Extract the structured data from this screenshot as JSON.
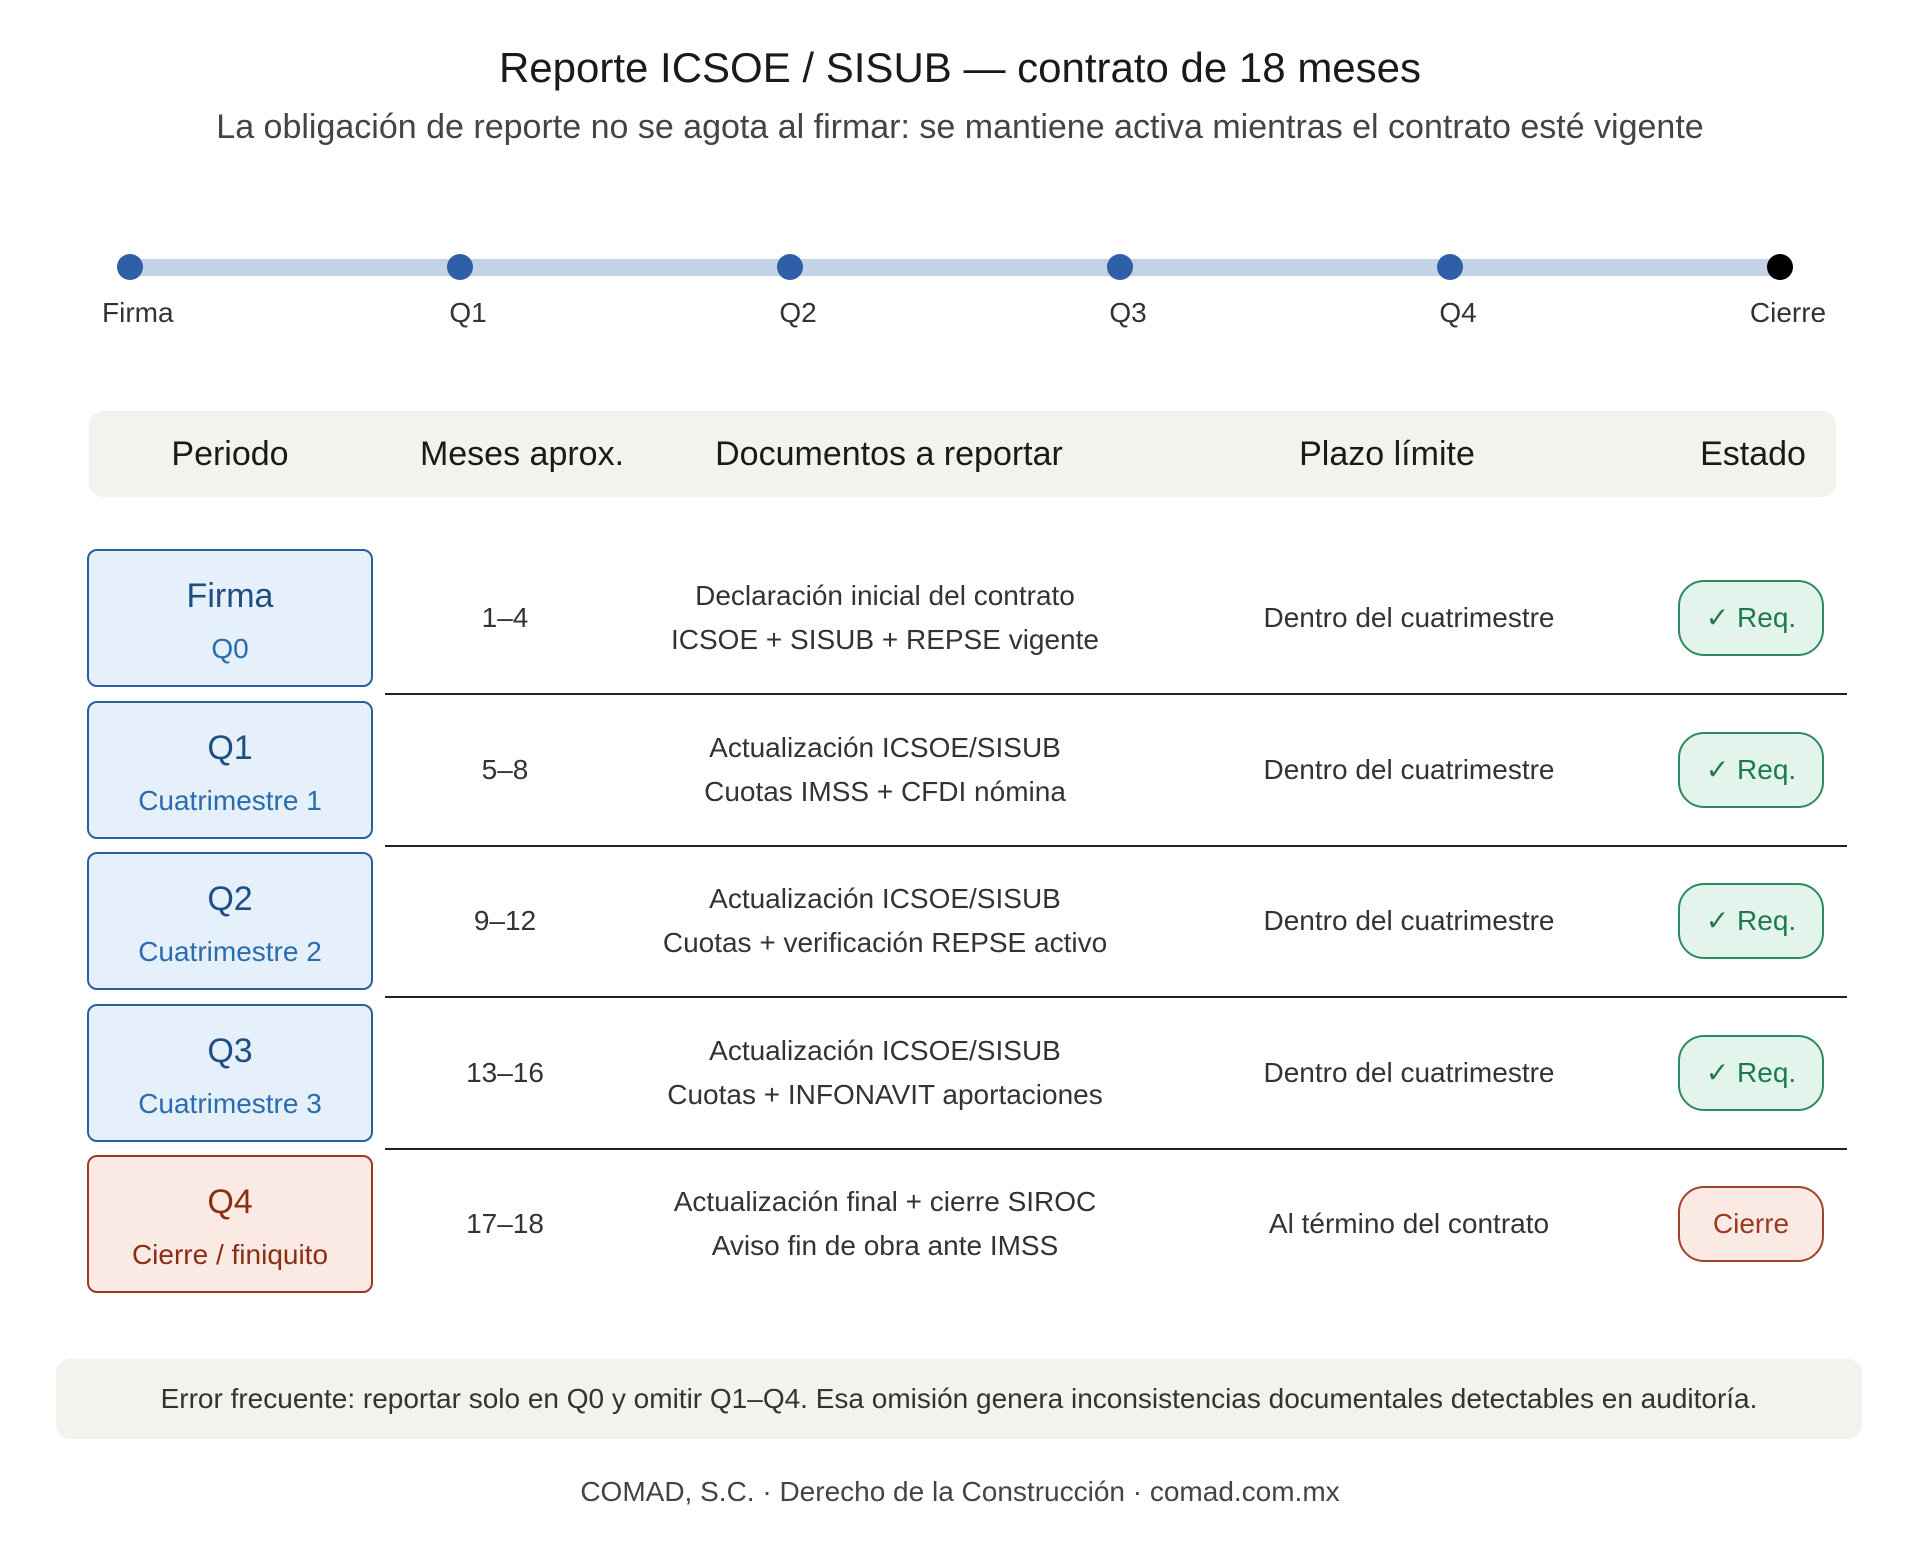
{
  "header": {
    "title": "Reporte ICSOE / SISUB — contrato de 18 meses",
    "subtitle": "La obligación de reporte no se agota al firmar: se mantiene activa mientras el contrato esté vigente"
  },
  "timeline": {
    "labels": [
      "Firma",
      "Q1",
      "Q2",
      "Q3",
      "Q4",
      "Cierre"
    ]
  },
  "table": {
    "columns": [
      "Periodo",
      "Meses aprox.",
      "Documentos a reportar",
      "Plazo límite",
      "Estado"
    ],
    "rows": [
      {
        "period": "Firma",
        "sub": "Q0",
        "months": "1–4",
        "docs": [
          "Declaración inicial del contrato",
          "ICSOE + SISUB + REPSE vigente"
        ],
        "deadline": "Dentro del cuatrimestre",
        "status": "✓ Req."
      },
      {
        "period": "Q1",
        "sub": "Cuatrimestre 1",
        "months": "5–8",
        "docs": [
          "Actualización ICSOE/SISUB",
          "Cuotas IMSS + CFDI nómina"
        ],
        "deadline": "Dentro del cuatrimestre",
        "status": "✓ Req."
      },
      {
        "period": "Q2",
        "sub": "Cuatrimestre 2",
        "months": "9–12",
        "docs": [
          "Actualización ICSOE/SISUB",
          "Cuotas + verificación REPSE activo"
        ],
        "deadline": "Dentro del cuatrimestre",
        "status": "✓ Req."
      },
      {
        "period": "Q3",
        "sub": "Cuatrimestre 3",
        "months": "13–16",
        "docs": [
          "Actualización ICSOE/SISUB",
          "Cuotas + INFONAVIT aportaciones"
        ],
        "deadline": "Dentro del cuatrimestre",
        "status": "✓ Req."
      },
      {
        "period": "Q4",
        "sub": "Cierre / finiquito",
        "months": "17–18",
        "docs": [
          "Actualización final + cierre SIROC",
          "Aviso fin de obra ante IMSS"
        ],
        "deadline": "Al término del contrato",
        "status": "Cierre"
      }
    ]
  },
  "note": "Error frecuente: reportar solo en Q0 y omitir Q1–Q4. Esa omisión genera inconsistencias documentales detectables en auditoría.",
  "footer": "COMAD, S.C. · Derecho de la Construcción · comad.com.mx"
}
